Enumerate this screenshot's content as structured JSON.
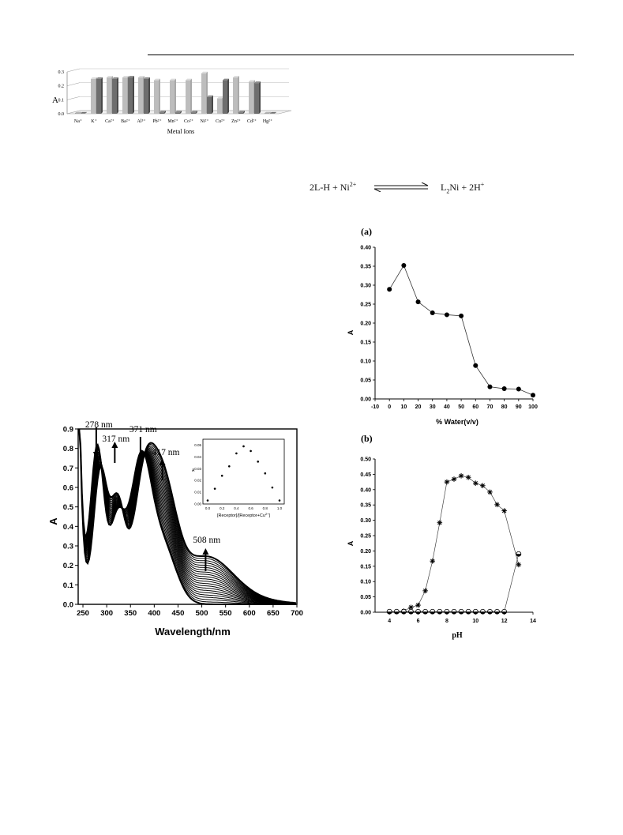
{
  "header_rule": true,
  "equation": {
    "left": "2L-H + Ni",
    "left_sup": "2+",
    "right_a": "L",
    "right_sub": "2",
    "right_b": "Ni + 2H",
    "right_sup": "+"
  },
  "chart_data": [
    {
      "id": "metal-selectivity",
      "type": "bar",
      "title": "",
      "xlabel": "Metal Ions",
      "ylabel": "A",
      "ylim": [
        0,
        0.3
      ],
      "yticks": [
        "0.0",
        "0.1",
        "0.2",
        "0.3"
      ],
      "categories": [
        "Na⁺",
        "K⁺",
        "Ca²⁺",
        "Ba²⁺",
        "Al³⁺",
        "Pb²⁺",
        "Mn²⁺",
        "Co²⁺",
        "Ni²⁺",
        "Cu²⁺",
        "Zn²⁺",
        "Cd²⁺",
        "Hg²⁺"
      ],
      "series": [
        {
          "values": [
            0.0,
            0.25,
            0.26,
            0.26,
            0.26,
            0.24,
            0.24,
            0.24,
            0.29,
            0.11,
            0.26,
            0.23,
            0.0
          ],
          "color": "#bdbdbd"
        },
        {
          "values": [
            0.0,
            0.25,
            0.25,
            0.26,
            0.25,
            0.01,
            0.01,
            0.01,
            0.12,
            0.24,
            0.01,
            0.22,
            0.0
          ],
          "color": "#6e6e6e"
        }
      ]
    },
    {
      "id": "uv-vis-titration",
      "type": "line",
      "xlabel": "Wavelength/nm",
      "ylabel": "A",
      "xlim": [
        240,
        700
      ],
      "ylim": [
        0,
        0.9
      ],
      "xticks": [
        250,
        300,
        350,
        400,
        450,
        500,
        550,
        600,
        650,
        700
      ],
      "yticks": [
        "0.0",
        "0.1",
        "0.2",
        "0.3",
        "0.4",
        "0.5",
        "0.6",
        "0.7",
        "0.8",
        "0.9"
      ],
      "curve_count": 22,
      "annotations": [
        {
          "text": "278 nm",
          "x": 278,
          "direction": "down"
        },
        {
          "text": "317 nm",
          "x": 317,
          "direction": "up"
        },
        {
          "text": "371 nm",
          "x": 371,
          "direction": "down"
        },
        {
          "text": "417 nm",
          "x": 417,
          "direction": "up"
        },
        {
          "text": "508 nm",
          "x": 508,
          "direction": "up"
        }
      ],
      "inset": {
        "type": "scatter",
        "xlabel": "[Receptor]/[Receptor+Cu",
        "xlabel_sup": "2+",
        "xlabel_end": "]",
        "ylabel": "A",
        "xlim": [
          0,
          1.0
        ],
        "ylim": [
          0,
          0.055
        ],
        "xticks": [
          "0.0",
          "0.2",
          "0.4",
          "0.6",
          "0.8",
          "1.0"
        ],
        "yticks": [
          "0.00",
          "0.01",
          "0.02",
          "0.03",
          "0.04",
          "0.05"
        ],
        "x": [
          0.0,
          0.1,
          0.2,
          0.3,
          0.4,
          0.5,
          0.6,
          0.7,
          0.8,
          0.9,
          1.0
        ],
        "y": [
          0.003,
          0.013,
          0.024,
          0.032,
          0.043,
          0.049,
          0.045,
          0.036,
          0.026,
          0.014,
          0.003
        ]
      }
    },
    {
      "id": "water-content",
      "type": "line",
      "panel_label": "(a)",
      "xlabel": "% Water(v/v)",
      "ylabel": "A",
      "xlim": [
        -10,
        100
      ],
      "ylim": [
        0,
        0.4
      ],
      "xticks": [
        -10,
        0,
        10,
        20,
        30,
        40,
        50,
        60,
        70,
        80,
        90,
        100
      ],
      "yticks": [
        "0.00",
        "0.05",
        "0.10",
        "0.15",
        "0.20",
        "0.25",
        "0.30",
        "0.35",
        "0.40"
      ],
      "x": [
        0,
        10,
        20,
        30,
        40,
        50,
        60,
        70,
        80,
        90,
        100
      ],
      "y": [
        0.289,
        0.352,
        0.256,
        0.227,
        0.222,
        0.219,
        0.088,
        0.032,
        0.027,
        0.026,
        0.01
      ]
    },
    {
      "id": "ph-effect",
      "type": "line",
      "panel_label": "(b)",
      "xlabel": "pH",
      "ylabel": "A",
      "xlim": [
        3,
        14
      ],
      "ylim": [
        0,
        0.5
      ],
      "xticks": [
        4,
        6,
        8,
        10,
        12,
        14
      ],
      "yticks": [
        "0.00",
        "0.05",
        "0.10",
        "0.15",
        "0.20",
        "0.25",
        "0.30",
        "0.35",
        "0.40",
        "0.45",
        "0.50"
      ],
      "series": [
        {
          "marker": "asterisk",
          "x": [
            4,
            4.5,
            5,
            5.5,
            6,
            6.5,
            7,
            7.5,
            8,
            8.5,
            9,
            9.5,
            10,
            10.5,
            11,
            11.5,
            12,
            13
          ],
          "y": [
            0.002,
            0.002,
            0.004,
            0.016,
            0.023,
            0.07,
            0.167,
            0.292,
            0.425,
            0.434,
            0.445,
            0.44,
            0.421,
            0.413,
            0.392,
            0.351,
            0.331,
            0.155
          ]
        },
        {
          "marker": "half-filled-circle",
          "x": [
            4,
            4.5,
            5,
            5.5,
            6,
            6.5,
            7,
            7.5,
            8,
            8.5,
            9,
            9.5,
            10,
            10.5,
            11,
            11.5,
            12,
            13
          ],
          "y": [
            0.002,
            0.002,
            0.002,
            0.002,
            0.002,
            0.002,
            0.002,
            0.002,
            0.002,
            0.002,
            0.002,
            0.002,
            0.002,
            0.002,
            0.002,
            0.002,
            0.002,
            0.19
          ]
        }
      ]
    }
  ]
}
